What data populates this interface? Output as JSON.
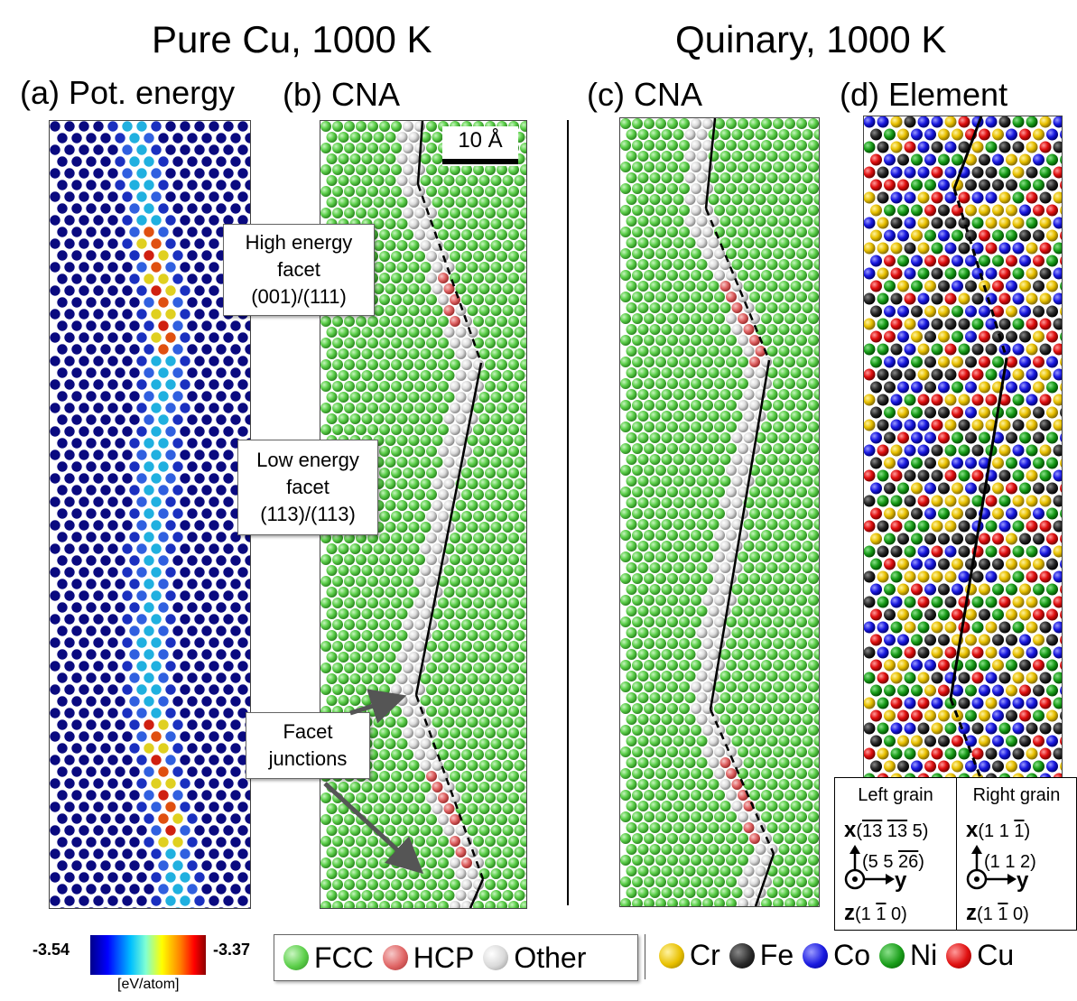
{
  "headers": {
    "left": "Pure Cu, 1000 K",
    "right": "Quinary, 1000 K"
  },
  "panels": {
    "a": "(a) Pot. energy",
    "b": "(b) CNA",
    "c": "(c) CNA",
    "d": "(d) Element"
  },
  "callouts": {
    "high": [
      "High energy",
      "facet",
      "(001)/(111)"
    ],
    "low": [
      "Low energy",
      "facet",
      "(113)/(113)"
    ],
    "junction": [
      "Facet",
      "junctions"
    ]
  },
  "scalebar": "10 Å",
  "colorbar": {
    "min": "-3.54",
    "max": "-3.37",
    "unit": "[eV/atom]"
  },
  "cna_legend": [
    {
      "label": "FCC",
      "color": "#5ccf4a"
    },
    {
      "label": "HCP",
      "color": "#e06565"
    },
    {
      "label": "Other",
      "color": "#d9d9d9"
    }
  ],
  "element_legend": [
    {
      "label": "Cr",
      "color": "#e8c000"
    },
    {
      "label": "Fe",
      "color": "#2a2a2a"
    },
    {
      "label": "Co",
      "color": "#1a1ae0"
    },
    {
      "label": "Ni",
      "color": "#1a9e1a"
    },
    {
      "label": "Cu",
      "color": "#e01010"
    }
  ],
  "grains": {
    "left": {
      "title": "Left grain",
      "x_axis": "x",
      "x_dir_parts": [
        "(",
        "13",
        " ",
        "13",
        " 5)"
      ],
      "y_dir_parts": [
        "(5  5  ",
        "26",
        ")"
      ],
      "y_axis": "y",
      "z_axis": "z",
      "z_dir_parts": [
        "(1  ",
        "1",
        "  0)"
      ]
    },
    "right": {
      "title": "Right grain",
      "x_axis": "x",
      "x_dir_parts": [
        "(1  1  ",
        "1",
        ")"
      ],
      "y_dir_parts": [
        "(1  1  2)"
      ],
      "y_axis": "y",
      "z_axis": "z",
      "z_dir_parts": [
        "(1  ",
        "1",
        "  0)"
      ]
    }
  }
}
